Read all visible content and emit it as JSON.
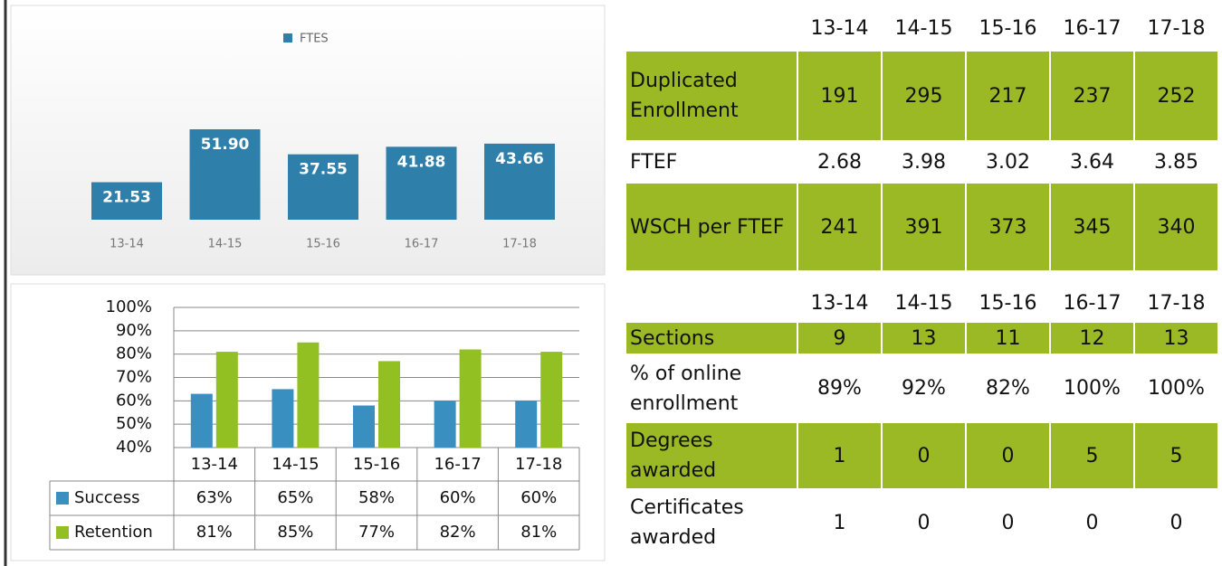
{
  "chart_data": [
    {
      "type": "bar",
      "categories": [
        "13-14",
        "14-15",
        "15-16",
        "16-17",
        "17-18"
      ],
      "series": [
        {
          "name": "FTES",
          "color": "#2f7fab",
          "values": [
            21.53,
            51.9,
            37.55,
            41.88,
            43.66
          ],
          "value_labels": [
            "21.53",
            "51.90",
            "37.55",
            "41.88",
            "43.66"
          ]
        }
      ]
    },
    {
      "type": "bar",
      "categories": [
        "13-14",
        "14-15",
        "15-16",
        "16-17",
        "17-18"
      ],
      "series": [
        {
          "name": "Success",
          "color": "#3a8fc1",
          "values": [
            63,
            65,
            58,
            60,
            60
          ],
          "value_labels": [
            "63%",
            "65%",
            "58%",
            "60%",
            "60%"
          ]
        },
        {
          "name": "Retention",
          "color": "#92c022",
          "values": [
            81,
            85,
            77,
            82,
            81
          ],
          "value_labels": [
            "81%",
            "85%",
            "77%",
            "82%",
            "81%"
          ]
        }
      ],
      "ylim": [
        40,
        100
      ],
      "yticks": [
        {
          "value": 40,
          "label": "40%"
        },
        {
          "value": 50,
          "label": "50%"
        },
        {
          "value": 60,
          "label": "60%"
        },
        {
          "value": 70,
          "label": "70%"
        },
        {
          "value": 80,
          "label": "80%"
        },
        {
          "value": 90,
          "label": "90%"
        },
        {
          "value": 100,
          "label": "100%"
        }
      ],
      "grid": true
    }
  ],
  "table_1": {
    "columns": [
      "13-14",
      "14-15",
      "15-16",
      "16-17",
      "17-18"
    ],
    "rows": [
      {
        "label": "Duplicated Enrollment",
        "cells": [
          "191",
          "295",
          "217",
          "237",
          "252"
        ]
      },
      {
        "label": "FTEF",
        "cells": [
          "2.68",
          "3.98",
          "3.02",
          "3.64",
          "3.85"
        ]
      },
      {
        "label": "WSCH per FTEF",
        "cells": [
          "241",
          "391",
          "373",
          "345",
          "340"
        ]
      }
    ]
  },
  "table_2": {
    "columns": [
      "13-14",
      "14-15",
      "15-16",
      "16-17",
      "17-18"
    ],
    "rows": [
      {
        "label": "Sections",
        "cells": [
          "9",
          "13",
          "11",
          "12",
          "13"
        ]
      },
      {
        "label": "% of online enrollment",
        "cells": [
          "89%",
          "92%",
          "82%",
          "100%",
          "100%"
        ]
      },
      {
        "label": "Degrees awarded",
        "cells": [
          "1",
          "0",
          "0",
          "5",
          "5"
        ]
      },
      {
        "label": "Certificates awarded",
        "cells": [
          "1",
          "0",
          "0",
          "0",
          "0"
        ]
      }
    ]
  }
}
